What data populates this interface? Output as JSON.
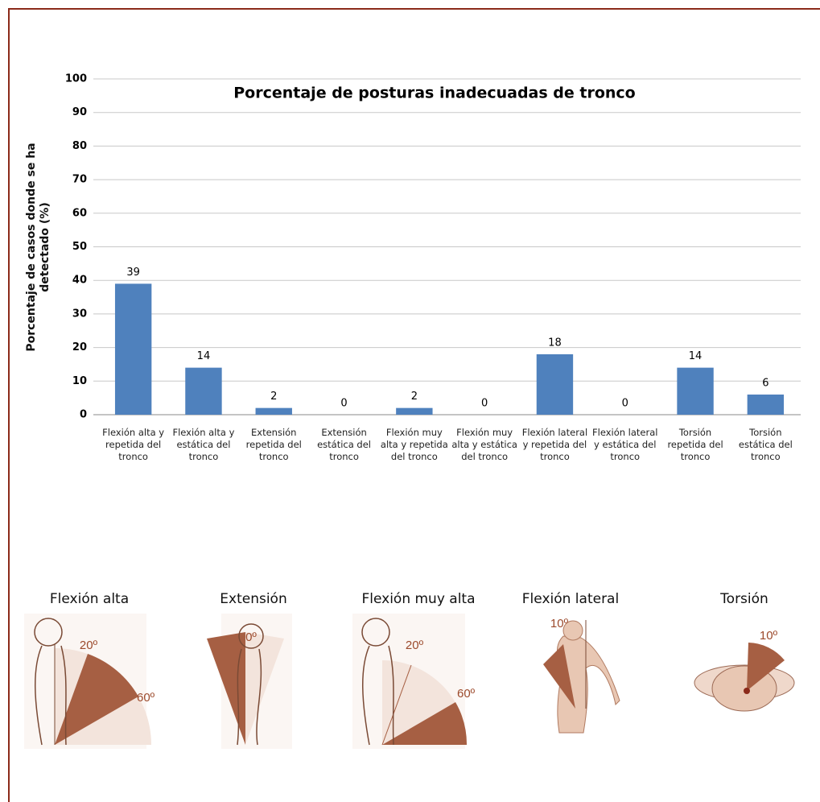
{
  "chart_data": {
    "type": "bar",
    "title": "Porcentaje de posturas inadecuadas de tronco",
    "y_label": "Porcentaje de casos donde se ha detectado (%)",
    "categories": [
      "Flexión alta y repetida del tronco",
      "Flexión alta y estática del tronco",
      "Extensión repetida del tronco",
      "Extensión estática del tronco",
      "Flexión muy alta y repetida del tronco",
      "Flexión muy alta y estática del tronco",
      "Flexión lateral y repetida del tronco",
      "Flexión lateral y estática del tronco",
      "Torsión repetida del tronco",
      "Torsión estática del tronco"
    ],
    "values": [
      39,
      14,
      2,
      0,
      2,
      0,
      18,
      0,
      14,
      6
    ],
    "color": "#4f81bd",
    "ylim": [
      0,
      100
    ],
    "yticks": [
      0,
      10,
      20,
      30,
      40,
      50,
      60,
      70,
      80,
      90,
      100
    ],
    "grid": true
  },
  "figures": [
    {
      "label": "Flexión alta",
      "angles": [
        "20º",
        "60º"
      ]
    },
    {
      "label": "Extensión",
      "angles": [
        "0º"
      ]
    },
    {
      "label": "Flexión muy alta",
      "angles": [
        "20º",
        "60º"
      ]
    },
    {
      "label": "Flexión lateral",
      "angles": [
        "10º"
      ]
    },
    {
      "label": "Torsión",
      "angles": [
        "10º"
      ]
    }
  ]
}
